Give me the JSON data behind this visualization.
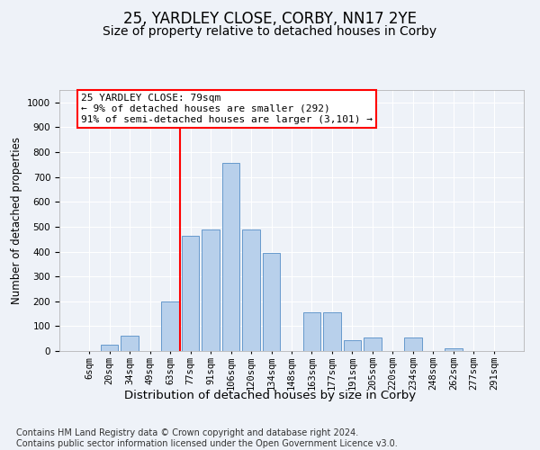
{
  "title": "25, YARDLEY CLOSE, CORBY, NN17 2YE",
  "subtitle": "Size of property relative to detached houses in Corby",
  "xlabel": "Distribution of detached houses by size in Corby",
  "ylabel": "Number of detached properties",
  "categories": [
    "6sqm",
    "20sqm",
    "34sqm",
    "49sqm",
    "63sqm",
    "77sqm",
    "91sqm",
    "106sqm",
    "120sqm",
    "134sqm",
    "148sqm",
    "163sqm",
    "177sqm",
    "191sqm",
    "205sqm",
    "220sqm",
    "234sqm",
    "248sqm",
    "262sqm",
    "277sqm",
    "291sqm"
  ],
  "bar_values": [
    0,
    25,
    60,
    0,
    200,
    465,
    490,
    755,
    490,
    395,
    0,
    155,
    155,
    45,
    55,
    0,
    55,
    0,
    10,
    0,
    0
  ],
  "bar_color": "#b8d0eb",
  "bar_edge_color": "#6699cc",
  "vline_color": "red",
  "vline_x": 4.5,
  "annotation_text": "25 YARDLEY CLOSE: 79sqm\n← 9% of detached houses are smaller (292)\n91% of semi-detached houses are larger (3,101) →",
  "annotation_box_facecolor": "white",
  "annotation_box_edgecolor": "red",
  "ylim": [
    0,
    1050
  ],
  "yticks": [
    0,
    100,
    200,
    300,
    400,
    500,
    600,
    700,
    800,
    900,
    1000
  ],
  "footnote": "Contains HM Land Registry data © Crown copyright and database right 2024.\nContains public sector information licensed under the Open Government Licence v3.0.",
  "title_fontsize": 12,
  "subtitle_fontsize": 10,
  "xlabel_fontsize": 9.5,
  "ylabel_fontsize": 8.5,
  "tick_fontsize": 7.5,
  "annot_fontsize": 8,
  "footnote_fontsize": 7,
  "bg_color": "#eef2f8",
  "plot_bg_color": "#eef2f8",
  "grid_color": "white"
}
